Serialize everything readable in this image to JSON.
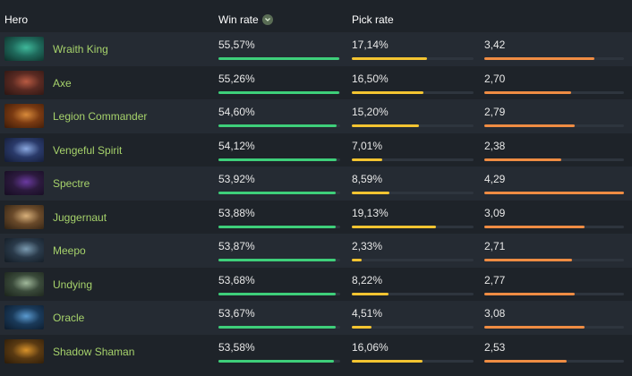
{
  "header": {
    "hero_label": "Hero",
    "win_rate_label": "Win rate",
    "pick_rate_label": "Pick rate",
    "sort_icon": "chevron-down-icon"
  },
  "colors": {
    "hero_name": "#a6d26b",
    "win_bar": "#3ecf7a",
    "pick_bar": "#f3c431",
    "third_bar": "#ef8c43"
  },
  "rows": [
    {
      "name": "Wraith King",
      "win": "55,57%",
      "win_pct": 99,
      "pick": "17,14%",
      "pick_pct": 62,
      "third": "3,42",
      "third_pct": 79,
      "portrait": [
        "#1f6a5c",
        "#3fb89a",
        "#0d2d28"
      ]
    },
    {
      "name": "Axe",
      "win": "55,26%",
      "win_pct": 99,
      "pick": "16,50%",
      "pick_pct": 59,
      "third": "2,70",
      "third_pct": 62,
      "portrait": [
        "#5a2a22",
        "#b85a42",
        "#2a1512"
      ]
    },
    {
      "name": "Legion Commander",
      "win": "54,60%",
      "win_pct": 97,
      "pick": "15,20%",
      "pick_pct": 55,
      "third": "2,79",
      "third_pct": 65,
      "portrait": [
        "#7a3a12",
        "#d88a3a",
        "#3b1a08"
      ]
    },
    {
      "name": "Vengeful Spirit",
      "win": "54,12%",
      "win_pct": 97,
      "pick": "7,01%",
      "pick_pct": 25,
      "third": "2,38",
      "third_pct": 55,
      "portrait": [
        "#2a3a6a",
        "#8aa8e0",
        "#121a33"
      ]
    },
    {
      "name": "Spectre",
      "win": "53,92%",
      "win_pct": 96,
      "pick": "8,59%",
      "pick_pct": 31,
      "third": "4,29",
      "third_pct": 100,
      "portrait": [
        "#2c1a3e",
        "#6a3aa0",
        "#150c20"
      ]
    },
    {
      "name": "Juggernaut",
      "win": "53,88%",
      "win_pct": 96,
      "pick": "19,13%",
      "pick_pct": 69,
      "third": "3,09",
      "third_pct": 72,
      "portrait": [
        "#6a4a2a",
        "#d8b07a",
        "#2e2012"
      ]
    },
    {
      "name": "Meepo",
      "win": "53,87%",
      "win_pct": 96,
      "pick": "2,33%",
      "pick_pct": 8,
      "third": "2,71",
      "third_pct": 63,
      "portrait": [
        "#2a3a4a",
        "#7a9ab0",
        "#121a22"
      ]
    },
    {
      "name": "Undying",
      "win": "53,68%",
      "win_pct": 96,
      "pick": "8,22%",
      "pick_pct": 30,
      "third": "2,77",
      "third_pct": 65,
      "portrait": [
        "#3a4a3a",
        "#a0b89a",
        "#1a221a"
      ]
    },
    {
      "name": "Oracle",
      "win": "53,67%",
      "win_pct": 96,
      "pick": "4,51%",
      "pick_pct": 16,
      "third": "3,08",
      "third_pct": 72,
      "portrait": [
        "#1a3a5a",
        "#5a9ad0",
        "#0c1a2a"
      ]
    },
    {
      "name": "Shadow Shaman",
      "win": "53,58%",
      "win_pct": 95,
      "pick": "16,06%",
      "pick_pct": 58,
      "third": "2,53",
      "third_pct": 59,
      "portrait": [
        "#5a3a12",
        "#d8922a",
        "#2a1a08"
      ]
    }
  ]
}
